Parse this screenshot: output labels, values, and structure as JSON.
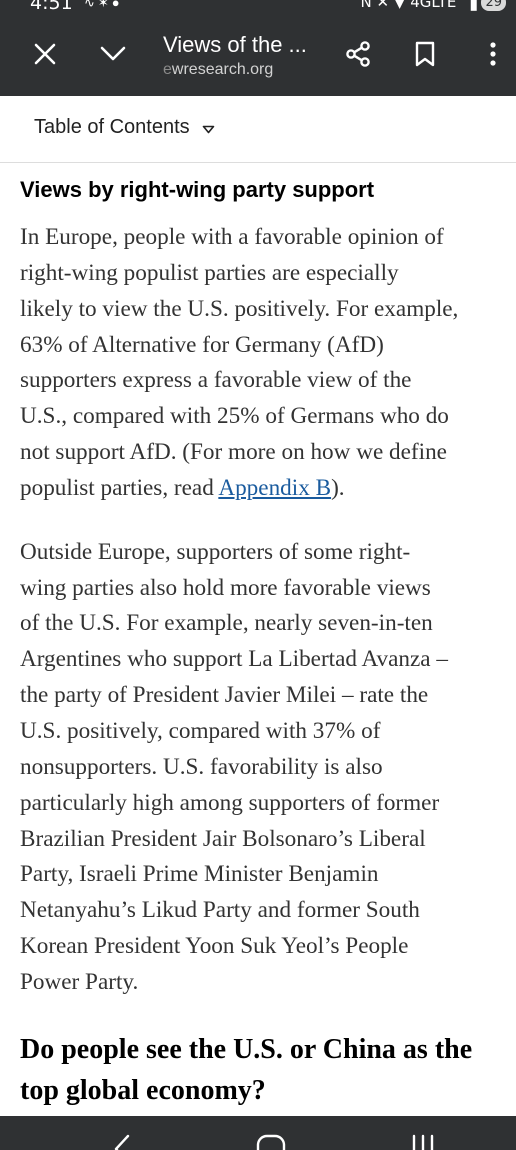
{
  "status_bar": {
    "time": "4:51",
    "network": "4GLTE",
    "battery": "29",
    "icons": [
      "notification-icons",
      "nfc-icon",
      "mute-icon",
      "location-icon",
      "signal-icon"
    ]
  },
  "toolbar": {
    "title": "Views of the ...",
    "url_prefix": "e",
    "url": "wresearch.org",
    "icons": [
      "close-icon",
      "chevron-down-icon",
      "share-icon",
      "bookmark-icon",
      "more-vert-icon"
    ]
  },
  "toc": {
    "label": "Table of Contents"
  },
  "article": {
    "section_heading": "Views by right-wing party support",
    "paragraph1": {
      "lines": [
        "In Europe, people with a favorable opinion of",
        "right-wing populist parties are especially",
        "likely to view the U.S. positively. For example,",
        "63% of Alternative for Germany (AfD)",
        "supporters express a favorable view of the",
        "U.S., compared with 25% of Germans who do",
        "not support AfD. (For more on how we define"
      ],
      "last_line_before": "populist parties, read ",
      "link_text": "Appendix B",
      "last_line_after": ")."
    },
    "paragraph2": {
      "lines": [
        "Outside Europe, supporters of some right-",
        "wing parties also hold more favorable views",
        "of the U.S. For example, nearly seven-in-ten",
        "Argentines who support La Libertad Avanza –",
        "the party of President Javier Milei – rate the",
        "U.S. positively, compared with 37% of",
        "nonsupporters. U.S. favorability is also",
        "particularly high among supporters of former",
        "Brazilian President Jair Bolsonaro’s Liberal",
        "Party, Israeli Prime Minister Benjamin",
        "Netanyahu’s Likud Party and former South",
        "Korean President Yoon Suk Yeol’s People",
        "Power Party."
      ]
    },
    "next_heading": {
      "lines": [
        "Do people see the U.S. or China as the",
        "top global economy?"
      ]
    }
  },
  "nav_bar": {
    "icons": [
      "back-icon",
      "home-icon",
      "recents-icon"
    ]
  },
  "colors": {
    "chrome": "#2f3133",
    "link": "#1a5b9e",
    "body_text": "#333333"
  }
}
